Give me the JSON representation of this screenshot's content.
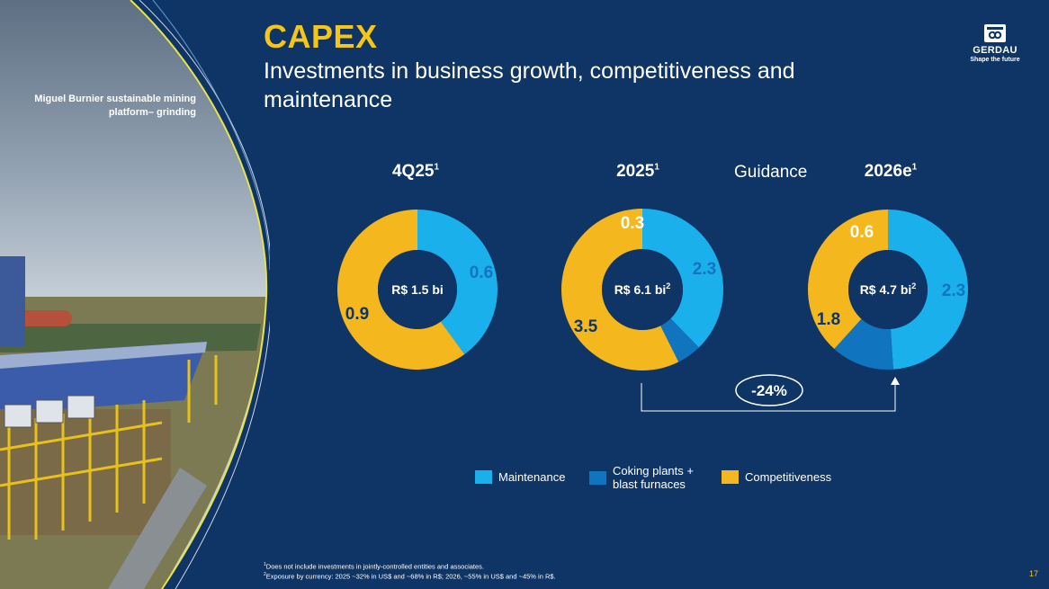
{
  "photo": {
    "caption_line1": "Miguel Burnier sustainable mining",
    "caption_line2": "platform– grinding"
  },
  "header": {
    "title": "CAPEX",
    "subtitle": "Investments in business growth, competitiveness and maintenance"
  },
  "logo": {
    "name": "GERDAU",
    "tagline": "Shape the future"
  },
  "labels": {
    "period_1": "4Q25",
    "period_2": "2025",
    "period_3": "2026e",
    "footnote_ref": "1",
    "guidance": "Guidance",
    "change": "-24%"
  },
  "colors": {
    "background": "#0f3566",
    "maintenance": "#1ab0ec",
    "coking": "#1174be",
    "competitiveness": "#f4b81e",
    "hole": "#0f3566",
    "title": "#f5c518"
  },
  "chart_data": [
    {
      "type": "pie",
      "title": "4Q25",
      "center_label": "R$ 1.5 bi",
      "center_sup": "",
      "categories": [
        "Maintenance",
        "Coking plants + blast furnaces",
        "Competitiveness"
      ],
      "values": [
        0.6,
        0,
        0.9
      ],
      "value_labels": [
        "0.6",
        "",
        "0.9"
      ]
    },
    {
      "type": "pie",
      "title": "2025",
      "center_label": "R$ 6.1 bi",
      "center_sup": "2",
      "categories": [
        "Maintenance",
        "Coking plants + blast furnaces",
        "Competitiveness"
      ],
      "values": [
        2.3,
        0.3,
        3.5
      ],
      "value_labels": [
        "2.3",
        "0.3",
        "3.5"
      ]
    },
    {
      "type": "pie",
      "title": "2026e",
      "center_label": "R$ 4.7 bi",
      "center_sup": "2",
      "categories": [
        "Maintenance",
        "Coking plants + blast furnaces",
        "Competitiveness"
      ],
      "values": [
        2.3,
        0.6,
        1.8
      ],
      "value_labels": [
        "2.3",
        "0.6",
        "1.8"
      ]
    }
  ],
  "legend": {
    "maintenance": "Maintenance",
    "coking_line1": "Coking plants +",
    "coking_line2": "blast furnaces",
    "competitiveness": "Competitiveness"
  },
  "footnotes": {
    "note1_marker": "1",
    "note1": "Does not include investments in jointly-controlled entities and associates.",
    "note2_marker": "2",
    "note2": "Exposure by currency:  2025 ~32% in US$ and ~68% in R$; 2026, ~55% in US$ and ~45% in R$."
  },
  "page_number": "17"
}
